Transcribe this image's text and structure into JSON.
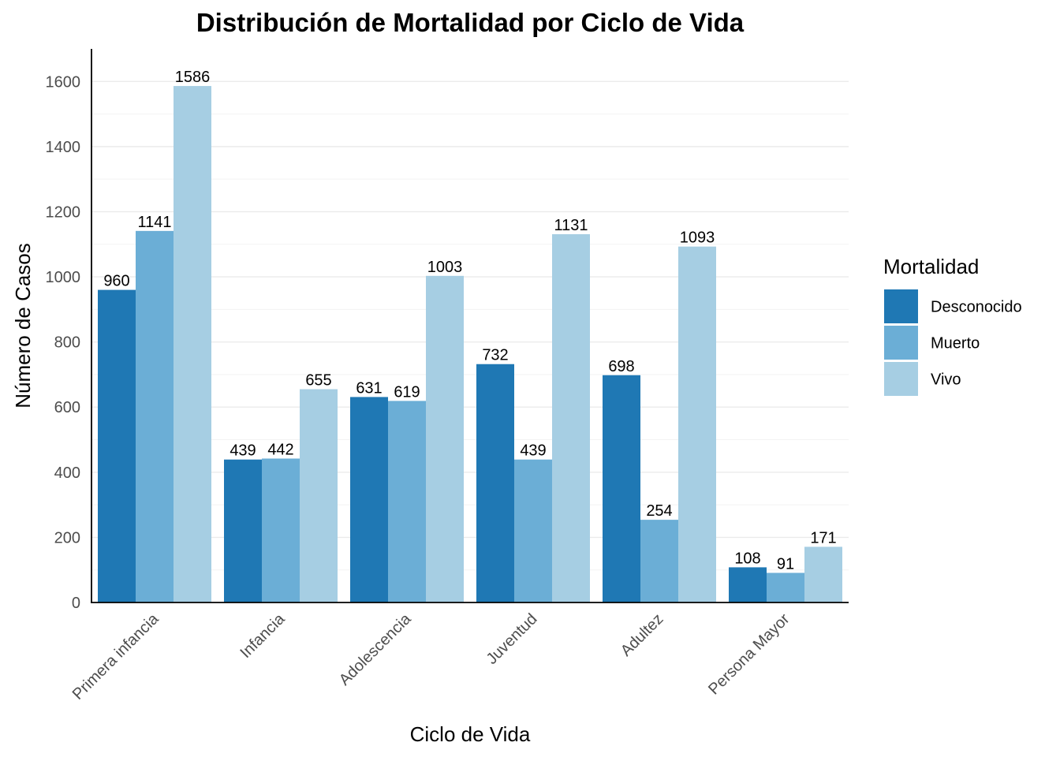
{
  "chart_data": {
    "type": "bar",
    "title": "Distribución de Mortalidad por Ciclo de Vida",
    "xlabel": "Ciclo de Vida",
    "ylabel": "Número de Casos",
    "categories": [
      "Primera infancia",
      "Infancia",
      "Adolescencia",
      "Juventud",
      "Adultez",
      "Persona Mayor"
    ],
    "series": [
      {
        "name": "Desconocido",
        "color": "#1f78b4",
        "values": [
          960,
          439,
          631,
          732,
          698,
          108
        ]
      },
      {
        "name": "Muerto",
        "color": "#6baed6",
        "values": [
          1141,
          442,
          619,
          439,
          254,
          91
        ]
      },
      {
        "name": "Vivo",
        "color": "#a6cee3",
        "values": [
          1586,
          655,
          1003,
          1131,
          1093,
          171
        ]
      }
    ],
    "ylim": [
      0,
      1700
    ],
    "yticks": [
      0,
      200,
      400,
      600,
      800,
      1000,
      1200,
      1400,
      1600
    ],
    "grid": true,
    "legend": {
      "title": "Mortalidad",
      "position": "right"
    },
    "data_labels": true
  }
}
